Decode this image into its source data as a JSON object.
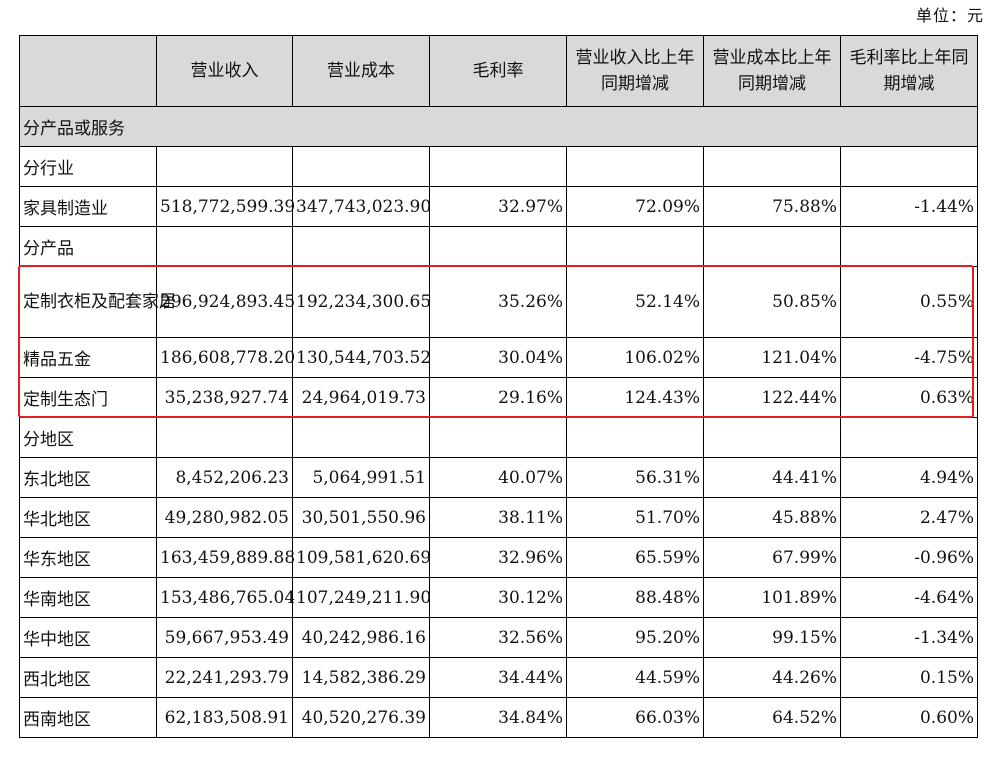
{
  "unit_label": "单位：元",
  "headers": [
    "",
    "营业收入",
    "营业成本",
    "毛利率",
    "营业收入比上年同期增减",
    "营业成本比上年同期增减",
    "毛利率比上年同期增减"
  ],
  "section_title": "分产品或服务",
  "groups": {
    "by_industry": "分行业",
    "by_product": "分产品",
    "by_region": "分地区"
  },
  "rows": {
    "industry": [
      [
        "家具制造业",
        "518,772,599.39",
        "347,743,023.90",
        "32.97%",
        "72.09%",
        "75.88%",
        "-1.44%"
      ]
    ],
    "product": [
      [
        "定制衣柜及配套家居",
        "296,924,893.45",
        "192,234,300.65",
        "35.26%",
        "52.14%",
        "50.85%",
        "0.55%"
      ],
      [
        "精品五金",
        "186,608,778.20",
        "130,544,703.52",
        "30.04%",
        "106.02%",
        "121.04%",
        "-4.75%"
      ],
      [
        "定制生态门",
        "35,238,927.74",
        "24,964,019.73",
        "29.16%",
        "124.43%",
        "122.44%",
        "0.63%"
      ]
    ],
    "region": [
      [
        "东北地区",
        "8,452,206.23",
        "5,064,991.51",
        "40.07%",
        "56.31%",
        "44.41%",
        "4.94%"
      ],
      [
        "华北地区",
        "49,280,982.05",
        "30,501,550.96",
        "38.11%",
        "51.70%",
        "45.88%",
        "2.47%"
      ],
      [
        "华东地区",
        "163,459,889.88",
        "109,581,620.69",
        "32.96%",
        "65.59%",
        "67.99%",
        "-0.96%"
      ],
      [
        "华南地区",
        "153,486,765.04",
        "107,249,211.90",
        "30.12%",
        "88.48%",
        "101.89%",
        "-4.64%"
      ],
      [
        "华中地区",
        "59,667,953.49",
        "40,242,986.16",
        "32.56%",
        "95.20%",
        "99.15%",
        "-1.34%"
      ],
      [
        "西北地区",
        "22,241,293.79",
        "14,582,386.29",
        "34.44%",
        "44.59%",
        "44.26%",
        "0.15%"
      ],
      [
        "西南地区",
        "62,183,508.91",
        "40,520,276.39",
        "34.84%",
        "66.03%",
        "64.52%",
        "0.60%"
      ]
    ]
  },
  "colors": {
    "header_bg": "#d9d9d9",
    "highlight_border": "#e02020"
  }
}
